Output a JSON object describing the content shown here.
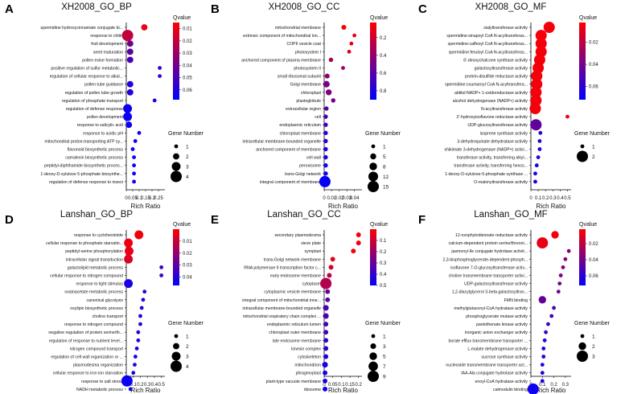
{
  "figure": {
    "colors": {
      "q_high": "#0000ff",
      "q_mid": "#7f0080",
      "q_low": "#ff0000",
      "axis": "#000000",
      "text": "#111111"
    }
  },
  "chart_data": [
    {
      "type": "scatter",
      "panel_letter": "A",
      "title": "XH2008_GO_BP",
      "xlabel": "Rich Ratio",
      "xlim": [
        0,
        0.3
      ],
      "xticks": [
        "0",
        "0.05",
        "0.1",
        "0.15",
        "0.2",
        "0.25"
      ],
      "xtick_values": [
        0,
        0.05,
        0.1,
        0.15,
        0.2,
        0.25
      ],
      "categories": [
        "spermidine hydroxycinnamate conjugate bi...",
        "response to chitin",
        "fruit development",
        "seed maturation",
        "pollen exine formation",
        "positive regulation of sulfur metabolic...",
        "regulation of cellular response to alkal...",
        "pollen tube guidance",
        "regulation of pollen tube growth",
        "regulation of phosphate transport",
        "regulation of defense response",
        "pollen development",
        "response to salicylic acid",
        "response to acidic pH",
        "mitochondrial proton-transporting ATP sy...",
        "flavonoid biosynthetic process",
        "camalexin biosynthetic process",
        "peptidyl-diphthamide biosynthetic proces...",
        "1-deoxy-D-xylulose 5-phosphate biosynthe...",
        "regulation of defense response to insect"
      ],
      "rich_ratio": [
        0.14,
        0.01,
        0.03,
        0.03,
        0.03,
        0.26,
        0.26,
        0.03,
        0.03,
        0.22,
        0.01,
        0.01,
        0.02,
        0.1,
        0.07,
        0.05,
        0.06,
        0.06,
        0.06,
        0.06
      ],
      "gene_number": [
        2,
        4,
        2,
        2,
        2,
        1,
        1,
        2,
        2,
        1,
        3,
        3,
        2,
        1,
        1,
        1,
        1,
        1,
        1,
        1
      ],
      "qvalue": [
        0.01,
        0.02,
        0.04,
        0.045,
        0.05,
        0.055,
        0.055,
        0.06,
        0.06,
        0.06,
        0.065,
        0.065,
        0.065,
        0.065,
        0.065,
        0.065,
        0.065,
        0.065,
        0.065,
        0.065
      ],
      "qvalue_legend": {
        "title": "Qvalue",
        "range": [
          0.005,
          0.068
        ],
        "ticks": [
          "0.01",
          "0.02",
          "0.03",
          "0.04",
          "0.05",
          "0.06"
        ],
        "tick_values": [
          0.01,
          0.02,
          0.03,
          0.04,
          0.05,
          0.06
        ]
      },
      "size_legend": {
        "title": "Gene Number",
        "values": [
          1,
          2,
          3,
          4
        ],
        "labels": [
          "1",
          "2",
          "3",
          "4"
        ]
      },
      "size_range": [
        1,
        4
      ]
    },
    {
      "type": "scatter",
      "panel_letter": "B",
      "title": "XH2008_GO_CC",
      "xlabel": "Rich Ratio",
      "xlim": [
        0,
        0.05
      ],
      "xticks": [
        "0",
        "0.01",
        "0.02",
        "0.03",
        "0.04"
      ],
      "xtick_values": [
        0,
        0.01,
        0.02,
        0.03,
        0.04
      ],
      "categories": [
        "mitochondrial membrane",
        "extrinsic component of mitochondrial inn...",
        "COPII vesicle coat",
        "photosystem I",
        "anchored component of plasma membrane",
        "photosystem II",
        "small ribosomal subunit",
        "Golgi membrane",
        "chloroplast",
        "plastoglobule",
        "extracellular region",
        "cell",
        "endoplasmic reticulum",
        "chloroplast membrane",
        "intracellular membrane-bounded organelle",
        "anchored component of membrane",
        "cell wall",
        "peroxisome",
        "trans-Golgi network",
        "integral component of membrane"
      ],
      "rich_ratio": [
        0.026,
        0.04,
        0.036,
        0.033,
        0.009,
        0.025,
        0.004,
        0.003,
        0.006,
        0.012,
        0.003,
        0.002,
        0.002,
        0.002,
        0.002,
        0.002,
        0.002,
        0.002,
        0.002,
        0.001
      ],
      "gene_number": [
        3,
        1,
        1,
        1,
        2,
        1,
        3,
        6,
        5,
        2,
        2,
        2,
        2,
        2,
        2,
        2,
        2,
        2,
        2,
        15
      ],
      "qvalue": [
        0.05,
        0.1,
        0.12,
        0.14,
        0.3,
        0.35,
        0.42,
        0.48,
        0.45,
        0.5,
        0.6,
        0.65,
        0.7,
        0.72,
        0.75,
        0.78,
        0.8,
        0.82,
        0.84,
        0.88
      ],
      "qvalue_legend": {
        "title": "Qvalue",
        "range": [
          0.03,
          0.9
        ],
        "ticks": [
          "0.2",
          "0.4",
          "0.6",
          "0.8"
        ],
        "tick_values": [
          0.2,
          0.4,
          0.6,
          0.8
        ]
      },
      "size_legend": {
        "title": "Gene Number",
        "values": [
          1,
          5,
          8,
          12,
          15
        ],
        "labels": [
          "1",
          "5",
          "8",
          "12",
          "15"
        ]
      },
      "size_range": [
        1,
        15
      ]
    },
    {
      "type": "scatter",
      "panel_letter": "C",
      "title": "XH2008_GO_MF",
      "xlabel": "Rich Ratio",
      "xlim": [
        0,
        0.55
      ],
      "xticks": [
        "0",
        "0.1",
        "0.2",
        "0.3",
        "0.4",
        "0.5"
      ],
      "xtick_values": [
        0,
        0.1,
        0.2,
        0.3,
        0.4,
        0.5
      ],
      "categories": [
        "sialyltransferase activity",
        "spermidine:sinapoyl CoA N-acyltransferas...",
        "spermidine:caffeoyl CoA N-acyltransferas...",
        "spermidine:feruloyl CoA N-acyltransferas...",
        "6'-deoxychalcone synthase activity",
        "galactosyltransferase activity",
        "protein-disulfide reductase activity",
        "spermidine:coumaroyl CoA N-acyltransfera...",
        "alditol:NADP+ 1-oxidoreductase activity",
        "alcohol dehydrogenase (NADP+) activity",
        "N-acyltransferase activity",
        "2'-hydroxyisoflavone reductase activity",
        "UDP-glucosyltransferase activity",
        "isoprene synthase activity",
        "3-dehydroquinate dehydratase activity",
        "shikimate 3-dehydrogenase (NADP+) activi...",
        "transferase activity, transferring alkyl...",
        "transferase activity, transferring hexos...",
        "1-deoxy-D-xylulose-5-phosphate synthase ...",
        "O-malonyltransferase activity"
      ],
      "rich_ratio": [
        0.25,
        0.14,
        0.14,
        0.14,
        0.12,
        0.1,
        0.08,
        0.08,
        0.07,
        0.07,
        0.06,
        0.5,
        0.07,
        0.13,
        0.12,
        0.12,
        0.1,
        0.08,
        0.06,
        0.06
      ],
      "gene_number": [
        2,
        2,
        2,
        2,
        2,
        2,
        2,
        2,
        2,
        2,
        2,
        1,
        2,
        1,
        1,
        1,
        1,
        1,
        1,
        1
      ],
      "qvalue": [
        0.005,
        0.005,
        0.005,
        0.005,
        0.005,
        0.005,
        0.005,
        0.005,
        0.005,
        0.005,
        0.005,
        0.005,
        0.045,
        0.06,
        0.062,
        0.063,
        0.064,
        0.065,
        0.066,
        0.067
      ],
      "qvalue_legend": {
        "title": "Qvalue",
        "range": [
          0.002,
          0.072
        ],
        "ticks": [
          "0.02",
          "0.04",
          "0.06"
        ],
        "tick_values": [
          0.02,
          0.04,
          0.06
        ]
      },
      "size_legend": {
        "title": "Gene Number",
        "values": [
          1,
          2
        ],
        "labels": [
          "1",
          "2"
        ]
      },
      "size_range": [
        1,
        2
      ]
    },
    {
      "type": "scatter",
      "panel_letter": "D",
      "title": "Lanshan_GO_BP",
      "xlabel": "Rich Ratio",
      "xlim": [
        0,
        0.55
      ],
      "xticks": [
        "0",
        "0.1",
        "0.2",
        "0.3",
        "0.4",
        "0.5"
      ],
      "xtick_values": [
        0,
        0.1,
        0.2,
        0.3,
        0.4,
        0.5
      ],
      "categories": [
        "response to cycloheximide",
        "cellular response to phosphate starvatio...",
        "peptidyl-serine phosphorylation",
        "intracellular signal transduction",
        "galactolipid metabolic process",
        "cellular response to nitrogen compound",
        "response to light stimulus",
        "oxaloacetate metabolic process",
        "canonical glycolysis",
        "oxylipin biosynthetic process",
        "choline transport",
        "response to nitrogen compound",
        "negative regulation of protein serine/th...",
        "regulation of response to nutrient level...",
        "nitrogen compound transport",
        "regulation of cell wall organization or ...",
        "plasmodesma organization",
        "cellular response to iron ion starvation",
        "response to salt stress",
        "NADH metabolic process"
      ],
      "rich_ratio": [
        0.18,
        0.03,
        0.04,
        0.03,
        0.5,
        0.5,
        0.03,
        0.26,
        0.24,
        0.22,
        0.2,
        0.2,
        0.17,
        0.17,
        0.15,
        0.13,
        0.12,
        0.1,
        0.01,
        0.06
      ],
      "gene_number": [
        3,
        3,
        3,
        3,
        1,
        1,
        3,
        1,
        1,
        1,
        1,
        1,
        1,
        1,
        1,
        1,
        1,
        1,
        4,
        1
      ],
      "qvalue": [
        0.002,
        0.003,
        0.004,
        0.006,
        0.035,
        0.035,
        0.042,
        0.038,
        0.038,
        0.039,
        0.04,
        0.04,
        0.041,
        0.041,
        0.042,
        0.042,
        0.043,
        0.043,
        0.045,
        0.045
      ],
      "qvalue_legend": {
        "title": "Qvalue",
        "range": [
          0.0,
          0.047
        ],
        "ticks": [
          "0.01",
          "0.02",
          "0.03",
          "0.04"
        ],
        "tick_values": [
          0.01,
          0.02,
          0.03,
          0.04
        ]
      },
      "size_legend": {
        "title": "Gene Number",
        "values": [
          1,
          2,
          3,
          4
        ],
        "labels": [
          "1",
          "2",
          "3",
          "4"
        ]
      },
      "size_range": [
        1,
        4
      ]
    },
    {
      "type": "scatter",
      "panel_letter": "E",
      "title": "Lanshan_GO_CC",
      "xlabel": "Rich Ratio",
      "xlim": [
        0,
        0.22
      ],
      "xticks": [
        "0",
        "0.05",
        "0.1",
        "0.15",
        "0.2"
      ],
      "xtick_values": [
        0,
        0.05,
        0.1,
        0.15,
        0.2
      ],
      "categories": [
        "secondary plasmodesma",
        "sieve plate",
        "symplast",
        "trans-Golgi network membrane",
        "RNA polymerase II transcription factor c...",
        "early endosome membrane",
        "cytoplasm",
        "cytoplasmic vesicle membrane",
        "integral component of mitochondrial inne...",
        "intracellular membrane-bounded organelle",
        "mitochondrial respiratory chain complex ...",
        "endoplasmic reticulum lumen",
        "chloroplast outer membrane",
        "late endosome membrane",
        "kinesin complex",
        "cytoskeleton",
        "mitochondrion",
        "phragmoplast",
        "plant-type vacuole membrane",
        "ribosome"
      ],
      "rich_ratio": [
        0.2,
        0.2,
        0.17,
        0.05,
        0.04,
        0.03,
        0.01,
        0.02,
        0.02,
        0.01,
        0.01,
        0.01,
        0.01,
        0.01,
        0.01,
        0.01,
        0.005,
        0.005,
        0.005,
        0.005
      ],
      "gene_number": [
        2,
        2,
        2,
        2,
        2,
        2,
        9,
        2,
        2,
        3,
        3,
        2,
        2,
        2,
        2,
        2,
        3,
        2,
        2,
        2
      ],
      "qvalue": [
        0.01,
        0.015,
        0.02,
        0.05,
        0.08,
        0.12,
        0.15,
        0.3,
        0.32,
        0.34,
        0.35,
        0.36,
        0.38,
        0.4,
        0.42,
        0.43,
        0.45,
        0.46,
        0.47,
        0.48
      ],
      "qvalue_legend": {
        "title": "Qvalue",
        "range": [
          0.0,
          0.5
        ],
        "ticks": [
          "0.1",
          "0.2",
          "0.3",
          "0.4",
          "0.5"
        ],
        "tick_values": [
          0.1,
          0.2,
          0.3,
          0.4,
          0.5
        ]
      },
      "size_legend": {
        "title": "Gene Number",
        "values": [
          1,
          3,
          5,
          7,
          9
        ],
        "labels": [
          "1",
          "3",
          "5",
          "7",
          "9"
        ]
      },
      "size_range": [
        1,
        9
      ]
    },
    {
      "type": "scatter",
      "panel_letter": "F",
      "title": "Lanshan_GO_MF",
      "xlabel": "Rich Ratio",
      "xlim": [
        0,
        0.35
      ],
      "xticks": [
        "0",
        "0.1",
        "0.2",
        "0.3"
      ],
      "xtick_values": [
        0,
        0.1,
        0.2,
        0.3
      ],
      "categories": [
        "12-oxophytodienoate reductase activity",
        "calcium-dependent protein serine/threoni...",
        "jasmonyl-Ile conjugate hydrolase activit...",
        "2,3-bisphosphoglycerate-dependent phosph...",
        "isoflavone 7-O-glucosyltransferase activ...",
        "choline transmembrane transporter activi...",
        "UDP-galactosyltransferase activity",
        "1,2-diacylglycerol 3-beta-galactosyltran...",
        "FMN binding",
        "methylglutaconyl-CoA hydratase activity",
        "phosphoglycerate mutase activity",
        "pantothenate kinase activity",
        "inorganic anion exchanger activity",
        "borate efflux transmembrane transporter ...",
        "L-malate dehydrogenase activity",
        "sucrose synthase activity",
        "nucleoside transmembrane transporter act...",
        "IAA-Ala conjugate hydrolase activity",
        "enoyl-CoA hydratase activity",
        "calmodulin binding"
      ],
      "rich_ratio": [
        0.21,
        0.1,
        0.33,
        0.3,
        0.28,
        0.26,
        0.25,
        0.24,
        0.1,
        0.2,
        0.18,
        0.15,
        0.13,
        0.12,
        0.11,
        0.11,
        0.1,
        0.1,
        0.1,
        0.02
      ],
      "gene_number": [
        2,
        3,
        1,
        1,
        1,
        1,
        1,
        1,
        2,
        1,
        1,
        1,
        1,
        1,
        1,
        1,
        1,
        1,
        1,
        3
      ],
      "qvalue": [
        0.005,
        0.008,
        0.035,
        0.036,
        0.037,
        0.038,
        0.04,
        0.04,
        0.045,
        0.05,
        0.055,
        0.056,
        0.058,
        0.06,
        0.061,
        0.062,
        0.063,
        0.064,
        0.065,
        0.068
      ],
      "qvalue_legend": {
        "title": "Qvalue",
        "range": [
          0.002,
          0.072
        ],
        "ticks": [
          "0.02",
          "0.04",
          "0.06"
        ],
        "tick_values": [
          0.02,
          0.04,
          0.06
        ]
      },
      "size_legend": {
        "title": "Gene Number",
        "values": [
          1,
          2,
          3
        ],
        "labels": [
          "1",
          "2",
          "3"
        ]
      },
      "size_range": [
        1,
        3
      ]
    }
  ]
}
